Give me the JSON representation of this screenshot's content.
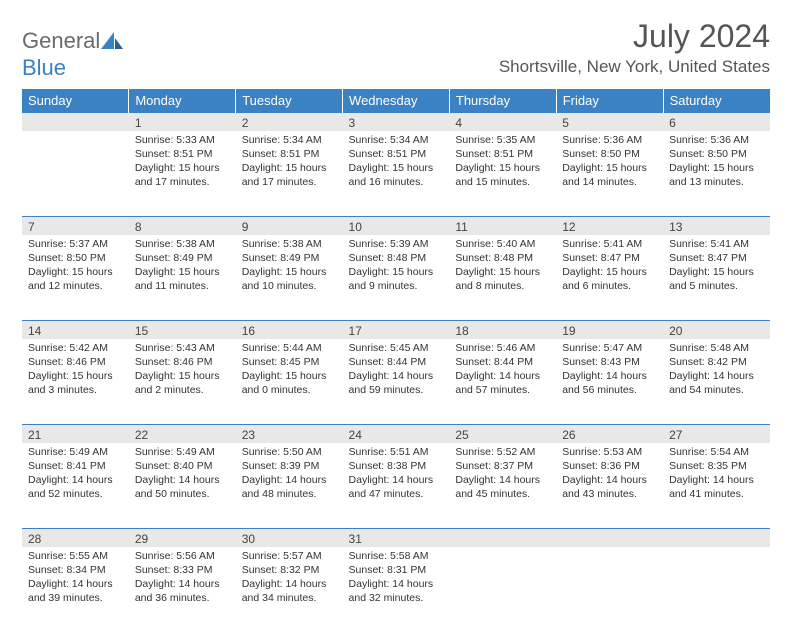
{
  "logo": {
    "top": "General",
    "bottom": "Blue"
  },
  "title": "July 2024",
  "location": "Shortsville, New York, United States",
  "colors": {
    "header_bg": "#3b82c4",
    "header_text": "#ffffff",
    "daynum_bg": "#e8e8e8",
    "divider": "#3b82c4",
    "body_text": "#333333",
    "title_text": "#555555"
  },
  "day_headers": [
    "Sunday",
    "Monday",
    "Tuesday",
    "Wednesday",
    "Thursday",
    "Friday",
    "Saturday"
  ],
  "weeks": [
    {
      "nums": [
        "",
        "1",
        "2",
        "3",
        "4",
        "5",
        "6"
      ],
      "cells": [
        null,
        {
          "sunrise": "Sunrise: 5:33 AM",
          "sunset": "Sunset: 8:51 PM",
          "day1": "Daylight: 15 hours",
          "day2": "and 17 minutes."
        },
        {
          "sunrise": "Sunrise: 5:34 AM",
          "sunset": "Sunset: 8:51 PM",
          "day1": "Daylight: 15 hours",
          "day2": "and 17 minutes."
        },
        {
          "sunrise": "Sunrise: 5:34 AM",
          "sunset": "Sunset: 8:51 PM",
          "day1": "Daylight: 15 hours",
          "day2": "and 16 minutes."
        },
        {
          "sunrise": "Sunrise: 5:35 AM",
          "sunset": "Sunset: 8:51 PM",
          "day1": "Daylight: 15 hours",
          "day2": "and 15 minutes."
        },
        {
          "sunrise": "Sunrise: 5:36 AM",
          "sunset": "Sunset: 8:50 PM",
          "day1": "Daylight: 15 hours",
          "day2": "and 14 minutes."
        },
        {
          "sunrise": "Sunrise: 5:36 AM",
          "sunset": "Sunset: 8:50 PM",
          "day1": "Daylight: 15 hours",
          "day2": "and 13 minutes."
        }
      ]
    },
    {
      "nums": [
        "7",
        "8",
        "9",
        "10",
        "11",
        "12",
        "13"
      ],
      "cells": [
        {
          "sunrise": "Sunrise: 5:37 AM",
          "sunset": "Sunset: 8:50 PM",
          "day1": "Daylight: 15 hours",
          "day2": "and 12 minutes."
        },
        {
          "sunrise": "Sunrise: 5:38 AM",
          "sunset": "Sunset: 8:49 PM",
          "day1": "Daylight: 15 hours",
          "day2": "and 11 minutes."
        },
        {
          "sunrise": "Sunrise: 5:38 AM",
          "sunset": "Sunset: 8:49 PM",
          "day1": "Daylight: 15 hours",
          "day2": "and 10 minutes."
        },
        {
          "sunrise": "Sunrise: 5:39 AM",
          "sunset": "Sunset: 8:48 PM",
          "day1": "Daylight: 15 hours",
          "day2": "and 9 minutes."
        },
        {
          "sunrise": "Sunrise: 5:40 AM",
          "sunset": "Sunset: 8:48 PM",
          "day1": "Daylight: 15 hours",
          "day2": "and 8 minutes."
        },
        {
          "sunrise": "Sunrise: 5:41 AM",
          "sunset": "Sunset: 8:47 PM",
          "day1": "Daylight: 15 hours",
          "day2": "and 6 minutes."
        },
        {
          "sunrise": "Sunrise: 5:41 AM",
          "sunset": "Sunset: 8:47 PM",
          "day1": "Daylight: 15 hours",
          "day2": "and 5 minutes."
        }
      ]
    },
    {
      "nums": [
        "14",
        "15",
        "16",
        "17",
        "18",
        "19",
        "20"
      ],
      "cells": [
        {
          "sunrise": "Sunrise: 5:42 AM",
          "sunset": "Sunset: 8:46 PM",
          "day1": "Daylight: 15 hours",
          "day2": "and 3 minutes."
        },
        {
          "sunrise": "Sunrise: 5:43 AM",
          "sunset": "Sunset: 8:46 PM",
          "day1": "Daylight: 15 hours",
          "day2": "and 2 minutes."
        },
        {
          "sunrise": "Sunrise: 5:44 AM",
          "sunset": "Sunset: 8:45 PM",
          "day1": "Daylight: 15 hours",
          "day2": "and 0 minutes."
        },
        {
          "sunrise": "Sunrise: 5:45 AM",
          "sunset": "Sunset: 8:44 PM",
          "day1": "Daylight: 14 hours",
          "day2": "and 59 minutes."
        },
        {
          "sunrise": "Sunrise: 5:46 AM",
          "sunset": "Sunset: 8:44 PM",
          "day1": "Daylight: 14 hours",
          "day2": "and 57 minutes."
        },
        {
          "sunrise": "Sunrise: 5:47 AM",
          "sunset": "Sunset: 8:43 PM",
          "day1": "Daylight: 14 hours",
          "day2": "and 56 minutes."
        },
        {
          "sunrise": "Sunrise: 5:48 AM",
          "sunset": "Sunset: 8:42 PM",
          "day1": "Daylight: 14 hours",
          "day2": "and 54 minutes."
        }
      ]
    },
    {
      "nums": [
        "21",
        "22",
        "23",
        "24",
        "25",
        "26",
        "27"
      ],
      "cells": [
        {
          "sunrise": "Sunrise: 5:49 AM",
          "sunset": "Sunset: 8:41 PM",
          "day1": "Daylight: 14 hours",
          "day2": "and 52 minutes."
        },
        {
          "sunrise": "Sunrise: 5:49 AM",
          "sunset": "Sunset: 8:40 PM",
          "day1": "Daylight: 14 hours",
          "day2": "and 50 minutes."
        },
        {
          "sunrise": "Sunrise: 5:50 AM",
          "sunset": "Sunset: 8:39 PM",
          "day1": "Daylight: 14 hours",
          "day2": "and 48 minutes."
        },
        {
          "sunrise": "Sunrise: 5:51 AM",
          "sunset": "Sunset: 8:38 PM",
          "day1": "Daylight: 14 hours",
          "day2": "and 47 minutes."
        },
        {
          "sunrise": "Sunrise: 5:52 AM",
          "sunset": "Sunset: 8:37 PM",
          "day1": "Daylight: 14 hours",
          "day2": "and 45 minutes."
        },
        {
          "sunrise": "Sunrise: 5:53 AM",
          "sunset": "Sunset: 8:36 PM",
          "day1": "Daylight: 14 hours",
          "day2": "and 43 minutes."
        },
        {
          "sunrise": "Sunrise: 5:54 AM",
          "sunset": "Sunset: 8:35 PM",
          "day1": "Daylight: 14 hours",
          "day2": "and 41 minutes."
        }
      ]
    },
    {
      "nums": [
        "28",
        "29",
        "30",
        "31",
        "",
        "",
        ""
      ],
      "cells": [
        {
          "sunrise": "Sunrise: 5:55 AM",
          "sunset": "Sunset: 8:34 PM",
          "day1": "Daylight: 14 hours",
          "day2": "and 39 minutes."
        },
        {
          "sunrise": "Sunrise: 5:56 AM",
          "sunset": "Sunset: 8:33 PM",
          "day1": "Daylight: 14 hours",
          "day2": "and 36 minutes."
        },
        {
          "sunrise": "Sunrise: 5:57 AM",
          "sunset": "Sunset: 8:32 PM",
          "day1": "Daylight: 14 hours",
          "day2": "and 34 minutes."
        },
        {
          "sunrise": "Sunrise: 5:58 AM",
          "sunset": "Sunset: 8:31 PM",
          "day1": "Daylight: 14 hours",
          "day2": "and 32 minutes."
        },
        null,
        null,
        null
      ]
    }
  ]
}
